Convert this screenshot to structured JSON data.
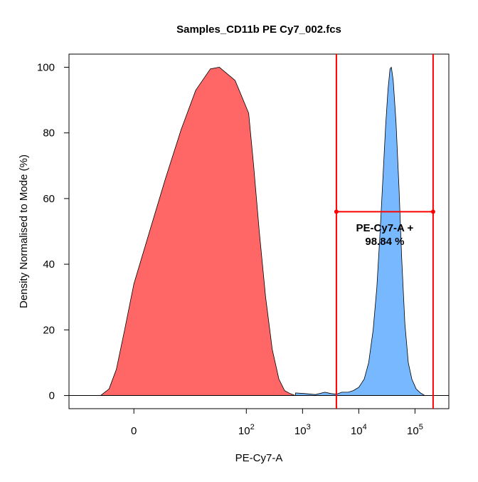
{
  "chart_data": {
    "type": "area",
    "title": "Samples_CD11b PE Cy7_002.fcs",
    "xlabel": "PE-Cy7-A",
    "ylabel": "Density Normalised to Mode (%)",
    "x_scale": "biexponential",
    "xlim": [
      -150,
      400000
    ],
    "ylim": [
      -4,
      104
    ],
    "x_ticks": [
      {
        "value": 0,
        "label": "0"
      },
      {
        "value": 100,
        "label": "10",
        "exp": "2"
      },
      {
        "value": 1000,
        "label": "10",
        "exp": "3"
      },
      {
        "value": 10000,
        "label": "10",
        "exp": "4"
      },
      {
        "value": 100000,
        "label": "10",
        "exp": "5"
      }
    ],
    "y_ticks": [
      0,
      20,
      40,
      60,
      80,
      100
    ],
    "grid": false,
    "series": [
      {
        "color": "#ff6666",
        "points": [
          [
            -60,
            0
          ],
          [
            -42,
            2
          ],
          [
            -28,
            8
          ],
          [
            -14,
            20
          ],
          [
            0,
            34
          ],
          [
            14,
            50
          ],
          [
            28,
            66
          ],
          [
            42,
            81
          ],
          [
            55,
            93
          ],
          [
            68,
            99.5
          ],
          [
            76,
            100
          ],
          [
            90,
            96
          ],
          [
            110,
            86
          ],
          [
            135,
            70
          ],
          [
            170,
            50
          ],
          [
            220,
            30
          ],
          [
            290,
            14
          ],
          [
            380,
            5
          ],
          [
            480,
            1.5
          ],
          [
            600,
            0.6
          ],
          [
            750,
            0
          ]
        ]
      },
      {
        "color": "#77b8ff",
        "points": [
          [
            750,
            0.8
          ],
          [
            1100,
            0.6
          ],
          [
            1700,
            0.3
          ],
          [
            2500,
            1.0
          ],
          [
            3200,
            0.6
          ],
          [
            4000,
            0.4
          ],
          [
            5000,
            1.0
          ],
          [
            6500,
            1.0
          ],
          [
            8000,
            1.5
          ],
          [
            10000,
            2.5
          ],
          [
            12500,
            5
          ],
          [
            15000,
            10
          ],
          [
            18000,
            20
          ],
          [
            21000,
            33
          ],
          [
            24000,
            50
          ],
          [
            27000,
            67
          ],
          [
            30000,
            82
          ],
          [
            33000,
            93
          ],
          [
            36000,
            99.5
          ],
          [
            38000,
            100
          ],
          [
            41000,
            96
          ],
          [
            46000,
            83
          ],
          [
            52000,
            63
          ],
          [
            58000,
            42
          ],
          [
            66000,
            22
          ],
          [
            76000,
            10
          ],
          [
            88000,
            5
          ],
          [
            105000,
            2
          ],
          [
            125000,
            0.8
          ],
          [
            150000,
            0
          ]
        ]
      }
    ],
    "gate": {
      "name": "PE-Cy7-A +",
      "percent": "98.84 %",
      "x_min": 4000,
      "x_max": 210000,
      "y": 56,
      "color": "#ff0000"
    }
  }
}
